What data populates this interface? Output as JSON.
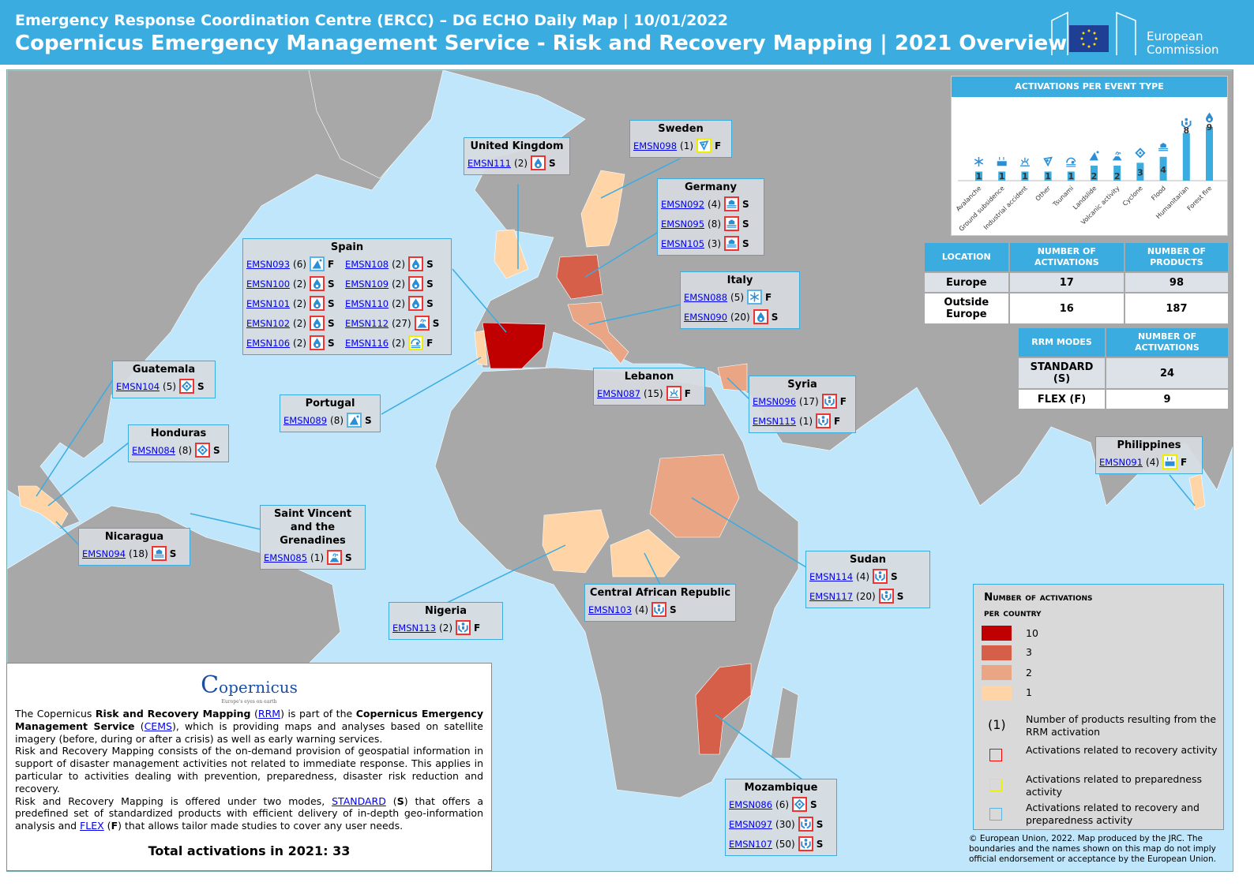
{
  "header": {
    "line1": "Emergency Response Coordination Centre (ERCC) – DG ECHO Daily Map | 10/01/2022",
    "line2": "Copernicus Emergency Management Service - Risk and Recovery Mapping  | 2021 Overview",
    "logo": "European Commission"
  },
  "colors": {
    "header": "#3aace0",
    "c10": "#c00000",
    "c3": "#d55f48",
    "c2": "#eaa585",
    "c1": "#ffd4a6",
    "land": "#a8a8a8",
    "sea": "#bfe6fb"
  },
  "countries": [
    {
      "name": "United Kingdom",
      "acts": [
        {
          "code": "EMSN111",
          "n": "(2)",
          "icon": "forest-fire",
          "frame": "red",
          "mode": "S"
        }
      ]
    },
    {
      "name": "Sweden",
      "acts": [
        {
          "code": "EMSN098",
          "n": "(1)",
          "icon": "other",
          "frame": "yellow",
          "mode": "F"
        }
      ]
    },
    {
      "name": "Germany",
      "acts": [
        {
          "code": "EMSN092",
          "n": "(4)",
          "icon": "flood",
          "frame": "red",
          "mode": "S"
        },
        {
          "code": "EMSN095",
          "n": "(8)",
          "icon": "flood",
          "frame": "red",
          "mode": "S"
        },
        {
          "code": "EMSN105",
          "n": "(3)",
          "icon": "flood",
          "frame": "red",
          "mode": "S"
        }
      ]
    },
    {
      "name": "Italy",
      "acts": [
        {
          "code": "EMSN088",
          "n": "(5)",
          "icon": "avalanche",
          "frame": "blue",
          "mode": "F"
        },
        {
          "code": "EMSN090",
          "n": "(20)",
          "icon": "forest-fire",
          "frame": "red",
          "mode": "S"
        }
      ]
    },
    {
      "name": "Spain",
      "acts": [
        {
          "code": "EMSN093",
          "n": "(6)",
          "icon": "landslide",
          "frame": "blue",
          "mode": "F"
        },
        {
          "code": "EMSN100",
          "n": "(2)",
          "icon": "forest-fire",
          "frame": "red",
          "mode": "S"
        },
        {
          "code": "EMSN101",
          "n": "(2)",
          "icon": "forest-fire",
          "frame": "red",
          "mode": "S"
        },
        {
          "code": "EMSN102",
          "n": "(2)",
          "icon": "forest-fire",
          "frame": "red",
          "mode": "S"
        },
        {
          "code": "EMSN106",
          "n": "(2)",
          "icon": "forest-fire",
          "frame": "red",
          "mode": "S"
        },
        {
          "code": "EMSN108",
          "n": "(2)",
          "icon": "forest-fire",
          "frame": "red",
          "mode": "S"
        },
        {
          "code": "EMSN109",
          "n": "(2)",
          "icon": "forest-fire",
          "frame": "red",
          "mode": "S"
        },
        {
          "code": "EMSN110",
          "n": "(2)",
          "icon": "forest-fire",
          "frame": "red",
          "mode": "S"
        },
        {
          "code": "EMSN112",
          "n": "(27)",
          "icon": "volcano",
          "frame": "red",
          "mode": "S"
        },
        {
          "code": "EMSN116",
          "n": "(2)",
          "icon": "tsunami",
          "frame": "yellow",
          "mode": "F"
        }
      ]
    },
    {
      "name": "Guatemala",
      "acts": [
        {
          "code": "EMSN104",
          "n": "(5)",
          "icon": "cyclone",
          "frame": "red",
          "mode": "S"
        }
      ]
    },
    {
      "name": "Portugal",
      "acts": [
        {
          "code": "EMSN089",
          "n": "(8)",
          "icon": "landslide",
          "frame": "blue",
          "mode": "S"
        }
      ]
    },
    {
      "name": "Honduras",
      "acts": [
        {
          "code": "EMSN084",
          "n": "(8)",
          "icon": "cyclone",
          "frame": "red",
          "mode": "S"
        }
      ]
    },
    {
      "name": "Saint Vincent and the Grenadines",
      "acts": [
        {
          "code": "EMSN085",
          "n": "(1)",
          "icon": "volcano",
          "frame": "red",
          "mode": "S"
        }
      ]
    },
    {
      "name": "Nicaragua",
      "acts": [
        {
          "code": "EMSN094",
          "n": "(18)",
          "icon": "flood",
          "frame": "red",
          "mode": "S"
        }
      ]
    },
    {
      "name": "Lebanon",
      "acts": [
        {
          "code": "EMSN087",
          "n": "(15)",
          "icon": "industrial",
          "frame": "red",
          "mode": "F"
        }
      ]
    },
    {
      "name": "Syria",
      "acts": [
        {
          "code": "EMSN096",
          "n": "(17)",
          "icon": "humanitarian",
          "frame": "red",
          "mode": "F"
        },
        {
          "code": "EMSN115",
          "n": "(1)",
          "icon": "humanitarian",
          "frame": "red",
          "mode": "F"
        }
      ]
    },
    {
      "name": "Philippines",
      "acts": [
        {
          "code": "EMSN091",
          "n": "(4)",
          "icon": "subsidence",
          "frame": "yellow",
          "mode": "F"
        }
      ]
    },
    {
      "name": "Sudan",
      "acts": [
        {
          "code": "EMSN114",
          "n": "(4)",
          "icon": "humanitarian",
          "frame": "red",
          "mode": "S"
        },
        {
          "code": "EMSN117",
          "n": "(20)",
          "icon": "humanitarian",
          "frame": "red",
          "mode": "S"
        }
      ]
    },
    {
      "name": "Nigeria",
      "acts": [
        {
          "code": "EMSN113",
          "n": "(2)",
          "icon": "humanitarian",
          "frame": "red",
          "mode": "F"
        }
      ]
    },
    {
      "name": "Central African Republic",
      "acts": [
        {
          "code": "EMSN103",
          "n": "(4)",
          "icon": "humanitarian",
          "frame": "red",
          "mode": "S"
        }
      ]
    },
    {
      "name": "Mozambique",
      "acts": [
        {
          "code": "EMSN086",
          "n": "(6)",
          "icon": "cyclone",
          "frame": "red",
          "mode": "S"
        },
        {
          "code": "EMSN097",
          "n": "(30)",
          "icon": "humanitarian",
          "frame": "red",
          "mode": "S"
        },
        {
          "code": "EMSN107",
          "n": "(50)",
          "icon": "humanitarian",
          "frame": "red",
          "mode": "S"
        }
      ]
    }
  ],
  "chart_data": {
    "type": "bar",
    "title": "Activations per event type",
    "categories": [
      "Avalanche",
      "Ground subsidence",
      "Industrial accident",
      "Other",
      "Tsunami",
      "Landslide",
      "Volcanic activity",
      "Cyclone",
      "Flood",
      "Humanitarian",
      "Forest fire"
    ],
    "values": [
      1,
      1,
      1,
      1,
      1,
      2,
      2,
      3,
      4,
      8,
      9
    ],
    "icons": [
      "avalanche",
      "subsidence",
      "industrial",
      "other",
      "tsunami",
      "landslide",
      "volcano",
      "cyclone",
      "flood",
      "humanitarian",
      "forest-fire"
    ],
    "ylim": [
      0,
      9
    ]
  },
  "location_table": {
    "headers": [
      "Location",
      "Number of activations",
      "Number of products"
    ],
    "rows": [
      [
        "Europe",
        "17",
        "98"
      ],
      [
        "Outside Europe",
        "16",
        "187"
      ]
    ]
  },
  "modes_table": {
    "headers": [
      "RRM modes",
      "Number of activations"
    ],
    "rows": [
      [
        "STANDARD (S)",
        "24"
      ],
      [
        "FLEX (F)",
        "9"
      ]
    ]
  },
  "legend": {
    "title1": "Number of activations",
    "title2": "per country",
    "classes": [
      "10",
      "3",
      "2",
      "1"
    ],
    "products_symbol": "(1)",
    "products_text": "Number of products resulting from the RRM activation",
    "recovery": "Activations related to recovery activity",
    "preparedness": "Activations related to preparedness activity",
    "both": "Activations related to recovery and preparedness activity"
  },
  "copyright": "© European Union, 2022. Map produced by the JRC. The boundaries and the names shown on this map do not imply official endorsement or acceptance by the European Union.",
  "panel": {
    "logo": "opernicus",
    "logo_c": "C",
    "tagline": "Europe's eyes on earth",
    "p1a": "The Copernicus ",
    "p1b": "Risk and Recovery Mapping",
    "p1c": " (",
    "rrm": "RRM",
    "p1d": ") is part of the ",
    "p1e": "Copernicus Emergency Management Service",
    "p1f": " (",
    "cems": "CEMS",
    "p1g": "), which is providing maps and analyses based on satellite imagery (before, during or after a crisis) as well as early warning services.",
    "p2": "Risk and Recovery Mapping consists of the on-demand provision of geospatial information in support of disaster management activities not related to immediate response. This applies in particular to activities dealing with prevention, preparedness, disaster risk reduction and recovery.",
    "p3a": "Risk and Recovery Mapping is offered under two modes, ",
    "standard": "STANDARD",
    "p3b": " (",
    "s": "S",
    "p3c": ") that offers a predefined set of standardized products with efficient delivery of in-depth geo-information analysis and ",
    "flex": "FLEX",
    "p3d": " (",
    "f": "F",
    "p3e": ") that allows tailor made studies to cover any user needs.",
    "total": "Total activations in 2021: 33"
  }
}
